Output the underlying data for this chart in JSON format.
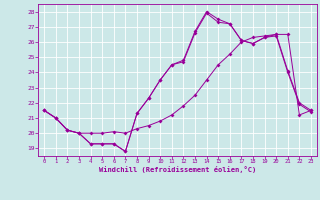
{
  "xlabel": "Windchill (Refroidissement éolien,°C)",
  "bg_color": "#cce8e8",
  "grid_color": "#ffffff",
  "line_color": "#990099",
  "xlim": [
    -0.5,
    23.5
  ],
  "ylim": [
    18.5,
    28.5
  ],
  "xticks": [
    0,
    1,
    2,
    3,
    4,
    5,
    6,
    7,
    8,
    9,
    10,
    11,
    12,
    13,
    14,
    15,
    16,
    17,
    18,
    19,
    20,
    21,
    22,
    23
  ],
  "yticks": [
    19,
    20,
    21,
    22,
    23,
    24,
    25,
    26,
    27,
    28
  ],
  "series1_x": [
    0,
    1,
    2,
    3,
    4,
    5,
    6,
    7,
    8,
    9,
    10,
    11,
    12,
    13,
    14,
    15,
    16,
    17,
    18,
    19,
    20,
    21,
    22,
    23
  ],
  "series1_y": [
    21.5,
    21.0,
    20.2,
    20.0,
    19.3,
    19.3,
    19.3,
    18.8,
    21.3,
    22.3,
    23.5,
    24.5,
    24.8,
    26.7,
    28.0,
    27.5,
    27.2,
    26.1,
    25.9,
    26.3,
    26.5,
    24.1,
    22.0,
    21.5
  ],
  "series2_x": [
    0,
    1,
    2,
    3,
    4,
    5,
    6,
    7,
    8,
    9,
    10,
    11,
    12,
    13,
    14,
    15,
    16,
    17,
    18,
    19,
    20,
    21,
    22,
    23
  ],
  "series2_y": [
    21.5,
    21.0,
    20.2,
    20.0,
    20.0,
    20.0,
    20.1,
    20.0,
    20.3,
    20.5,
    20.8,
    21.2,
    21.8,
    22.5,
    23.5,
    24.5,
    25.2,
    26.0,
    26.3,
    26.4,
    26.5,
    26.5,
    21.2,
    21.5
  ],
  "series3_x": [
    0,
    1,
    2,
    3,
    4,
    5,
    6,
    7,
    8,
    9,
    10,
    11,
    12,
    13,
    14,
    15,
    16,
    17,
    18,
    19,
    20,
    21,
    22,
    23
  ],
  "series3_y": [
    21.5,
    21.0,
    20.2,
    20.0,
    19.3,
    19.3,
    19.3,
    18.8,
    21.3,
    22.3,
    23.5,
    24.5,
    24.7,
    26.6,
    27.9,
    27.3,
    27.2,
    26.1,
    25.9,
    26.3,
    26.4,
    24.0,
    21.9,
    21.4
  ]
}
